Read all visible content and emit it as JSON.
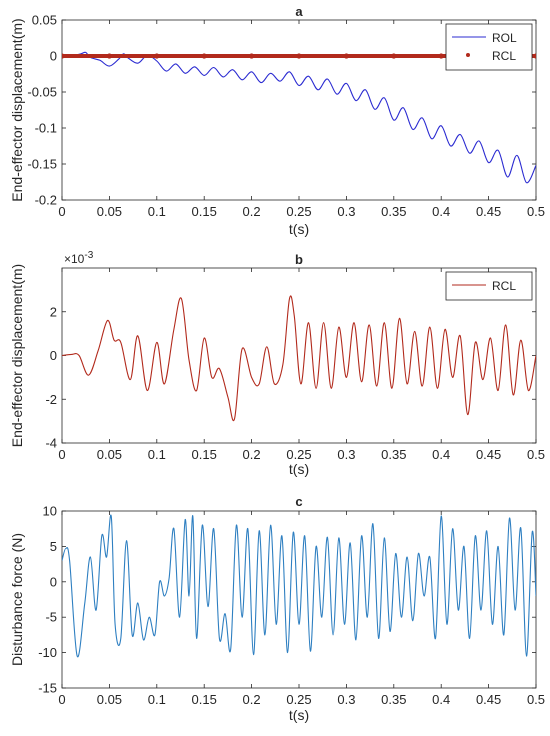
{
  "figure": {
    "background": "#ffffff",
    "axis_color": "#262626",
    "line_colors": {
      "ROL": "#2b2bd1",
      "RCL": "#b22a1c",
      "disturbance": "#2e7fc1"
    }
  },
  "chart_data": [
    {
      "panel": "a",
      "type": "line",
      "title": "a",
      "xlabel": "t(s)",
      "ylabel": "End-effector displacement(m)",
      "xlim": [
        0,
        0.5
      ],
      "ylim": [
        -0.2,
        0.05
      ],
      "xticks": [
        0,
        0.05,
        0.1,
        0.15,
        0.2,
        0.25,
        0.3,
        0.35,
        0.4,
        0.45,
        0.5
      ],
      "xtick_labels": [
        "0",
        "0.05",
        "0.1",
        "0.15",
        "0.2",
        "0.25",
        "0.3",
        "0.35",
        "0.4",
        "0.45",
        "0.5"
      ],
      "yticks": [
        -0.2,
        -0.15,
        -0.1,
        -0.05,
        0,
        0.05
      ],
      "ytick_labels": [
        "-0.2",
        "-0.15",
        "-0.1",
        "-0.05",
        "0",
        "0.05"
      ],
      "legend": {
        "position": "top-right",
        "entries": [
          "ROL",
          "RCL"
        ]
      },
      "grid": false,
      "series": [
        {
          "name": "ROL",
          "color": "#2b2bd1",
          "style": "line",
          "x": [
            0,
            0.01,
            0.02,
            0.025,
            0.03,
            0.04,
            0.05,
            0.06,
            0.065,
            0.07,
            0.08,
            0.09,
            0.1,
            0.11,
            0.12,
            0.13,
            0.14,
            0.15,
            0.16,
            0.17,
            0.18,
            0.19,
            0.2,
            0.21,
            0.22,
            0.23,
            0.24,
            0.25,
            0.26,
            0.27,
            0.28,
            0.29,
            0.3,
            0.31,
            0.32,
            0.33,
            0.34,
            0.35,
            0.36,
            0.37,
            0.38,
            0.39,
            0.4,
            0.41,
            0.42,
            0.43,
            0.44,
            0.45,
            0.46,
            0.47,
            0.48,
            0.49,
            0.5
          ],
          "y": [
            0,
            0,
            0.003,
            0.005,
            -0.002,
            -0.006,
            -0.014,
            -0.004,
            0.003,
            -0.003,
            -0.01,
            0.001,
            -0.007,
            -0.021,
            -0.011,
            -0.024,
            -0.015,
            -0.027,
            -0.016,
            -0.029,
            -0.019,
            -0.033,
            -0.022,
            -0.037,
            -0.024,
            -0.035,
            -0.022,
            -0.041,
            -0.028,
            -0.047,
            -0.032,
            -0.053,
            -0.038,
            -0.062,
            -0.047,
            -0.074,
            -0.058,
            -0.089,
            -0.072,
            -0.102,
            -0.086,
            -0.115,
            -0.097,
            -0.125,
            -0.109,
            -0.135,
            -0.118,
            -0.148,
            -0.131,
            -0.168,
            -0.138,
            -0.176,
            -0.152
          ]
        },
        {
          "name": "RCL",
          "color": "#b22a1c",
          "style": "markers",
          "x": [
            0,
            0.05,
            0.1,
            0.15,
            0.2,
            0.25,
            0.3,
            0.35,
            0.4,
            0.45,
            0.5
          ],
          "y": [
            0,
            0,
            0,
            0,
            0,
            0,
            0,
            0,
            0,
            0,
            0
          ]
        }
      ]
    },
    {
      "panel": "b",
      "type": "line",
      "title": "b",
      "xlabel": "t(s)",
      "ylabel": "End-effector displacement(m)",
      "y_multiplier": "×10",
      "y_multiplier_exponent": "-3",
      "xlim": [
        0,
        0.5
      ],
      "ylim": [
        -4,
        4
      ],
      "xticks": [
        0,
        0.05,
        0.1,
        0.15,
        0.2,
        0.25,
        0.3,
        0.35,
        0.4,
        0.45,
        0.5
      ],
      "xtick_labels": [
        "0",
        "0.05",
        "0.1",
        "0.15",
        "0.2",
        "0.25",
        "0.3",
        "0.35",
        "0.4",
        "0.45",
        "0.5"
      ],
      "yticks": [
        -4,
        -2,
        0,
        2
      ],
      "ytick_labels": [
        "-4",
        "-2",
        "0",
        "2"
      ],
      "legend": {
        "position": "top-right",
        "entries": [
          "RCL"
        ]
      },
      "grid": false,
      "series": [
        {
          "name": "RCL",
          "color": "#b22a1c",
          "x": [
            0,
            0.01,
            0.018,
            0.028,
            0.038,
            0.048,
            0.055,
            0.062,
            0.072,
            0.08,
            0.09,
            0.1,
            0.108,
            0.118,
            0.126,
            0.134,
            0.142,
            0.15,
            0.158,
            0.166,
            0.175,
            0.182,
            0.19,
            0.2,
            0.208,
            0.216,
            0.224,
            0.233,
            0.24,
            0.245,
            0.252,
            0.26,
            0.268,
            0.276,
            0.284,
            0.292,
            0.3,
            0.308,
            0.316,
            0.324,
            0.332,
            0.34,
            0.348,
            0.356,
            0.364,
            0.372,
            0.38,
            0.388,
            0.396,
            0.404,
            0.412,
            0.42,
            0.428,
            0.436,
            0.444,
            0.452,
            0.46,
            0.468,
            0.476,
            0.484,
            0.492,
            0.5
          ],
          "y": [
            0,
            0.05,
            0,
            -0.9,
            0.2,
            1.6,
            0.7,
            0.6,
            -1.1,
            0.9,
            -1.6,
            0.6,
            -1.3,
            1.2,
            2.6,
            -0.2,
            -1.6,
            0.8,
            -1.0,
            -0.6,
            -1.9,
            -2.9,
            0.3,
            -1.0,
            -1.3,
            0.4,
            -1.3,
            -0.4,
            2.6,
            1.8,
            -1.3,
            1.5,
            -1.5,
            1.5,
            -1.5,
            1.3,
            -1.0,
            1.5,
            -1.2,
            1.4,
            -1.4,
            1.5,
            -1.5,
            1.7,
            -1.3,
            1.1,
            -1.4,
            1.3,
            -1.5,
            1.2,
            -1.0,
            0.9,
            -2.7,
            0.6,
            -1.1,
            0.8,
            -1.6,
            1.4,
            -1.8,
            0.7,
            -1.6,
            0
          ]
        }
      ]
    },
    {
      "panel": "c",
      "type": "line",
      "title": "c",
      "xlabel": "t(s)",
      "ylabel": "Disturbance force (N)",
      "xlim": [
        0,
        0.5
      ],
      "ylim": [
        -15,
        10
      ],
      "xticks": [
        0,
        0.05,
        0.1,
        0.15,
        0.2,
        0.25,
        0.3,
        0.35,
        0.4,
        0.45,
        0.5
      ],
      "xtick_labels": [
        "0",
        "0.05",
        "0.1",
        "0.15",
        "0.2",
        "0.25",
        "0.3",
        "0.35",
        "0.4",
        "0.45",
        "0.5"
      ],
      "yticks": [
        -15,
        -10,
        -5,
        0,
        5,
        10
      ],
      "ytick_labels": [
        "-15",
        "-10",
        "-5",
        "0",
        "5",
        "10"
      ],
      "grid": false,
      "series": [
        {
          "name": "",
          "color": "#2e7fc1",
          "x": [
            0,
            0.004,
            0.008,
            0.016,
            0.024,
            0.03,
            0.036,
            0.042,
            0.047,
            0.052,
            0.056,
            0.062,
            0.068,
            0.074,
            0.08,
            0.086,
            0.092,
            0.098,
            0.103,
            0.108,
            0.113,
            0.118,
            0.124,
            0.13,
            0.134,
            0.138,
            0.142,
            0.148,
            0.154,
            0.16,
            0.166,
            0.172,
            0.178,
            0.184,
            0.19,
            0.196,
            0.202,
            0.208,
            0.214,
            0.22,
            0.226,
            0.232,
            0.238,
            0.244,
            0.25,
            0.256,
            0.262,
            0.268,
            0.274,
            0.28,
            0.286,
            0.292,
            0.298,
            0.304,
            0.31,
            0.316,
            0.322,
            0.328,
            0.334,
            0.34,
            0.346,
            0.352,
            0.358,
            0.364,
            0.37,
            0.376,
            0.382,
            0.388,
            0.394,
            0.4,
            0.406,
            0.412,
            0.418,
            0.424,
            0.43,
            0.436,
            0.442,
            0.448,
            0.454,
            0.46,
            0.466,
            0.472,
            0.478,
            0.484,
            0.49,
            0.496,
            0.5
          ],
          "y": [
            3,
            4.7,
            3,
            -10.5,
            -3,
            3.5,
            -4,
            6.5,
            3.5,
            9.2,
            -6,
            -8,
            5.8,
            -7.5,
            -3,
            -8.2,
            -5,
            -7.5,
            0,
            -2,
            0.5,
            7.5,
            -5,
            8.8,
            -2,
            9.3,
            -8,
            8,
            -3.5,
            7.5,
            -8,
            -4.5,
            -9.5,
            8,
            -5,
            7.5,
            -10.3,
            7.2,
            -7.5,
            8,
            -6,
            6.5,
            -10,
            7,
            -6,
            6.5,
            -9.8,
            5,
            -5,
            6.3,
            -7.5,
            6.2,
            -6,
            5.5,
            -8.2,
            6.5,
            -5,
            8.2,
            -8,
            6.2,
            -7,
            4,
            -5,
            3.5,
            -5.5,
            4,
            -2,
            3.5,
            -8,
            9.3,
            -6,
            7.5,
            -4,
            5,
            -8,
            6.5,
            -4,
            7.2,
            -6,
            5,
            -7.5,
            9,
            -4,
            7.6,
            -10.5,
            7,
            -2
          ]
        }
      ]
    }
  ]
}
